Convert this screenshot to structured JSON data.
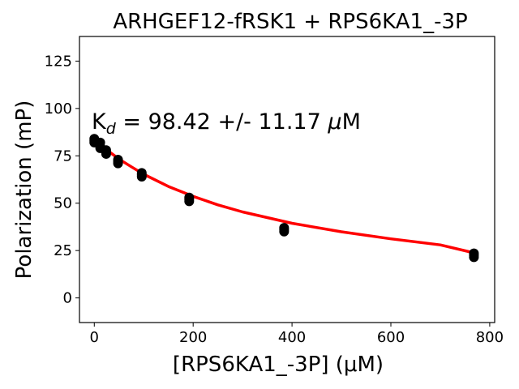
{
  "chart_data": {
    "type": "scatter",
    "title": "ARHGEF12-fRSK1 + RPS6KA1_-3P",
    "xlabel": "[RPS6KA1_-3P] (μM)",
    "ylabel": "Polarization (mP)",
    "xlim": [
      -30,
      810
    ],
    "ylim": [
      -13,
      138
    ],
    "xticks": [
      0,
      200,
      400,
      600,
      800
    ],
    "yticks": [
      0,
      25,
      50,
      75,
      100,
      125
    ],
    "grid": false,
    "annotation": {
      "prefix": "K",
      "subscript": "d",
      "body": " = 98.42 +/- 11.17 ",
      "unit_mu": "μ",
      "unit_rest": "M"
    },
    "series": [
      {
        "kind": "points",
        "color": "#000000",
        "points": [
          {
            "x": 0,
            "y": 84
          },
          {
            "x": 0,
            "y": 83
          },
          {
            "x": 0,
            "y": 82
          },
          {
            "x": 12,
            "y": 82
          },
          {
            "x": 12,
            "y": 80
          },
          {
            "x": 12,
            "y": 79
          },
          {
            "x": 24,
            "y": 78
          },
          {
            "x": 24,
            "y": 77
          },
          {
            "x": 24,
            "y": 76
          },
          {
            "x": 48,
            "y": 73
          },
          {
            "x": 48,
            "y": 72
          },
          {
            "x": 48,
            "y": 71
          },
          {
            "x": 96,
            "y": 66
          },
          {
            "x": 96,
            "y": 65
          },
          {
            "x": 96,
            "y": 64
          },
          {
            "x": 192,
            "y": 53
          },
          {
            "x": 192,
            "y": 52
          },
          {
            "x": 192,
            "y": 51
          },
          {
            "x": 384,
            "y": 37
          },
          {
            "x": 384,
            "y": 36
          },
          {
            "x": 384,
            "y": 35
          },
          {
            "x": 768,
            "y": 23.5
          },
          {
            "x": 768,
            "y": 22.5
          },
          {
            "x": 768,
            "y": 21.5
          }
        ]
      },
      {
        "kind": "fit",
        "color": "#ff0000",
        "x": [
          0,
          10,
          25,
          50,
          75,
          100,
          150,
          200,
          250,
          300,
          400,
          500,
          600,
          700,
          768
        ],
        "y": [
          84.1,
          81.5,
          78.2,
          73.3,
          69.2,
          65.3,
          58.8,
          53.6,
          49.1,
          45.4,
          39.4,
          34.9,
          31.2,
          28.0,
          23.8
        ]
      }
    ]
  }
}
